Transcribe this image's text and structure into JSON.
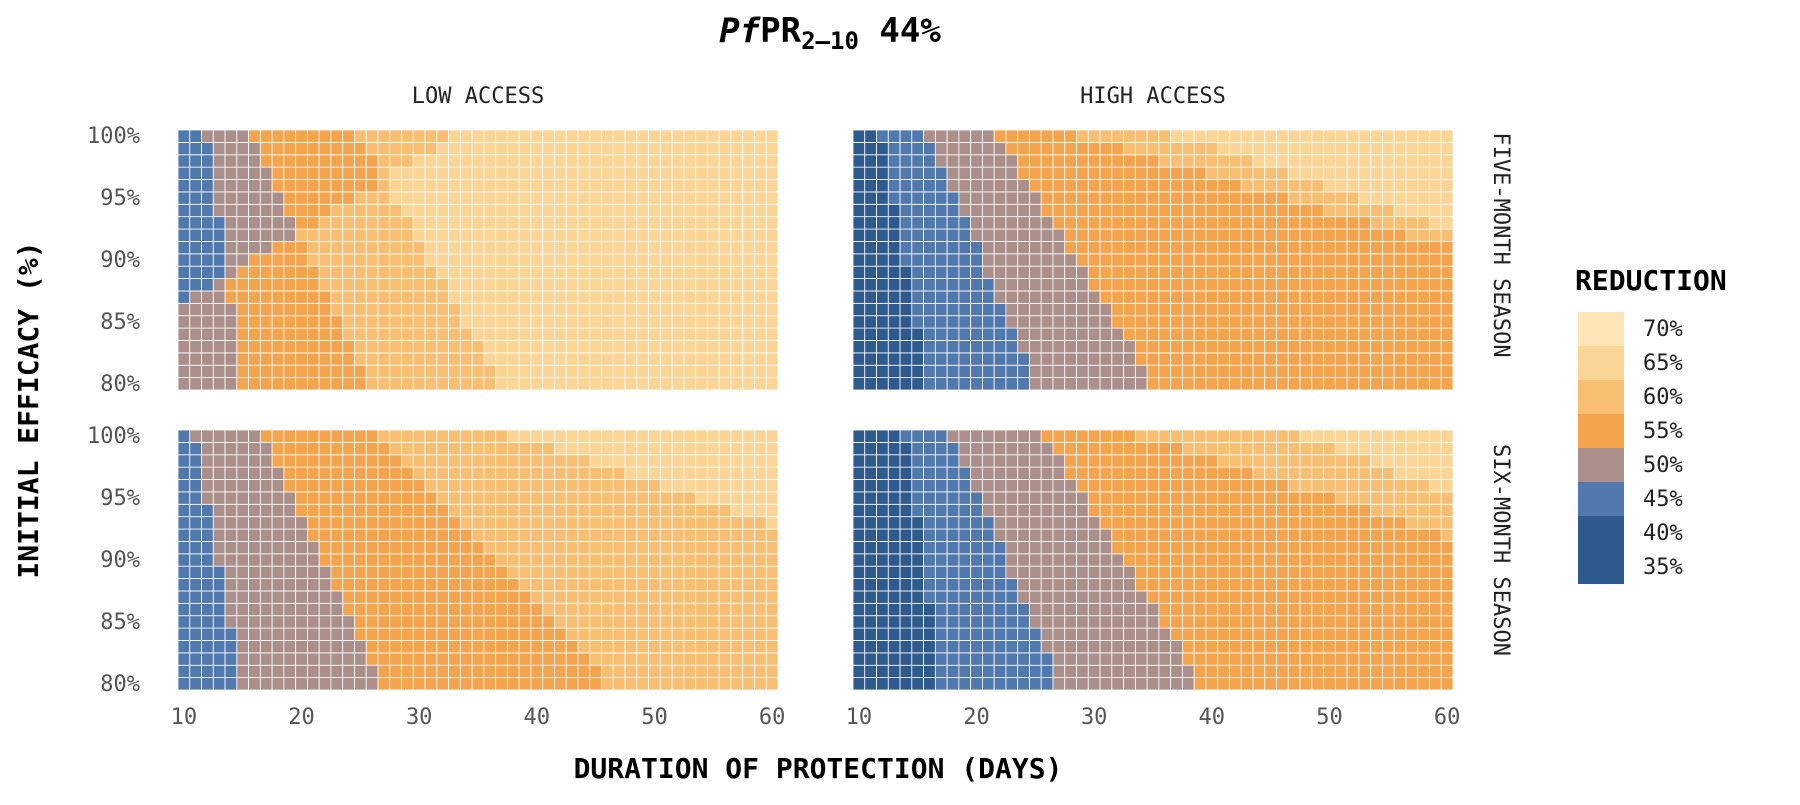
{
  "chart_data": {
    "type": "heatmap",
    "title": {
      "italic": "Pf",
      "main": "PR",
      "sub": "2–10",
      "value": " 44%"
    },
    "xlabel": "DURATION OF PROTECTION (DAYS)",
    "ylabel": "INITIAL EFFICACY (%)",
    "x_ticks": [
      "10",
      "20",
      "30",
      "40",
      "50",
      "60"
    ],
    "y_ticks": [
      "80%",
      "85%",
      "90%",
      "95%",
      "100%"
    ],
    "xlim": [
      10,
      60
    ],
    "ylim": [
      80,
      100
    ],
    "grid": "white cell borders",
    "column_strips": [
      "LOW ACCESS",
      "HIGH ACCESS"
    ],
    "row_strips": [
      "FIVE-MONTH SEASON",
      "SIX-MONTH SEASON"
    ],
    "legend": {
      "title": "REDUCTION",
      "placement": "right",
      "items": [
        {
          "label": "70%",
          "color": "#fde5b7"
        },
        {
          "label": "65%",
          "color": "#fbd595"
        },
        {
          "label": "60%",
          "color": "#f8bf73"
        },
        {
          "label": "55%",
          "color": "#f5a44e"
        },
        {
          "label": "50%",
          "color": "#ab8f8b"
        },
        {
          "label": "45%",
          "color": "#5179ad"
        },
        {
          "label": "40%",
          "color": "#2e5a8e"
        },
        {
          "label": "35%",
          "color": "#2e5a8e"
        }
      ]
    },
    "class_colors": [
      "#2e5a8e",
      "#5179ad",
      "#ab8f8b",
      "#f5a44e",
      "#f8bf73",
      "#fbd595",
      "#fde5b7"
    ],
    "class_labels": [
      "35–40%",
      "40–45%",
      "45–50%",
      "50–55%",
      "55–60%",
      "60–65%",
      "65–70%"
    ],
    "panel_boundaries_note": "class of cell = number of boundaries at or below cell's duration; boundaries listed per class transition, each given as [duration at 80% efficacy, duration at 100% efficacy]",
    "panels": [
      {
        "row": "FIVE-MONTH SEASON",
        "column": "LOW ACCESS",
        "boundaries": [
          [
            -1,
            -1
          ],
          [
            15,
            12
          ],
          [
            26,
            16
          ],
          [
            37,
            25
          ],
          [
            -1,
            33
          ],
          [
            99,
            62
          ]
        ]
      },
      {
        "row": "FIVE-MONTH SEASON",
        "column": "HIGH ACCESS",
        "boundaries": [
          [
            16,
            12
          ],
          [
            25,
            16
          ],
          [
            35,
            22
          ],
          [
            99,
            29
          ],
          [
            99,
            37
          ],
          [
            99,
            66
          ]
        ]
      },
      {
        "row": "SIX-MONTH SEASON",
        "column": "LOW ACCESS",
        "boundaries": [
          [
            -1,
            -1
          ],
          [
            15,
            11
          ],
          [
            27,
            17
          ],
          [
            46,
            27
          ],
          [
            99,
            38
          ],
          [
            99,
            100
          ]
        ]
      },
      {
        "row": "SIX-MONTH SEASON",
        "column": "HIGH ACCESS",
        "boundaries": [
          [
            17,
            14
          ],
          [
            27,
            18
          ],
          [
            39,
            26
          ],
          [
            99,
            34
          ],
          [
            99,
            48
          ],
          [
            99,
            100
          ]
        ]
      }
    ]
  }
}
